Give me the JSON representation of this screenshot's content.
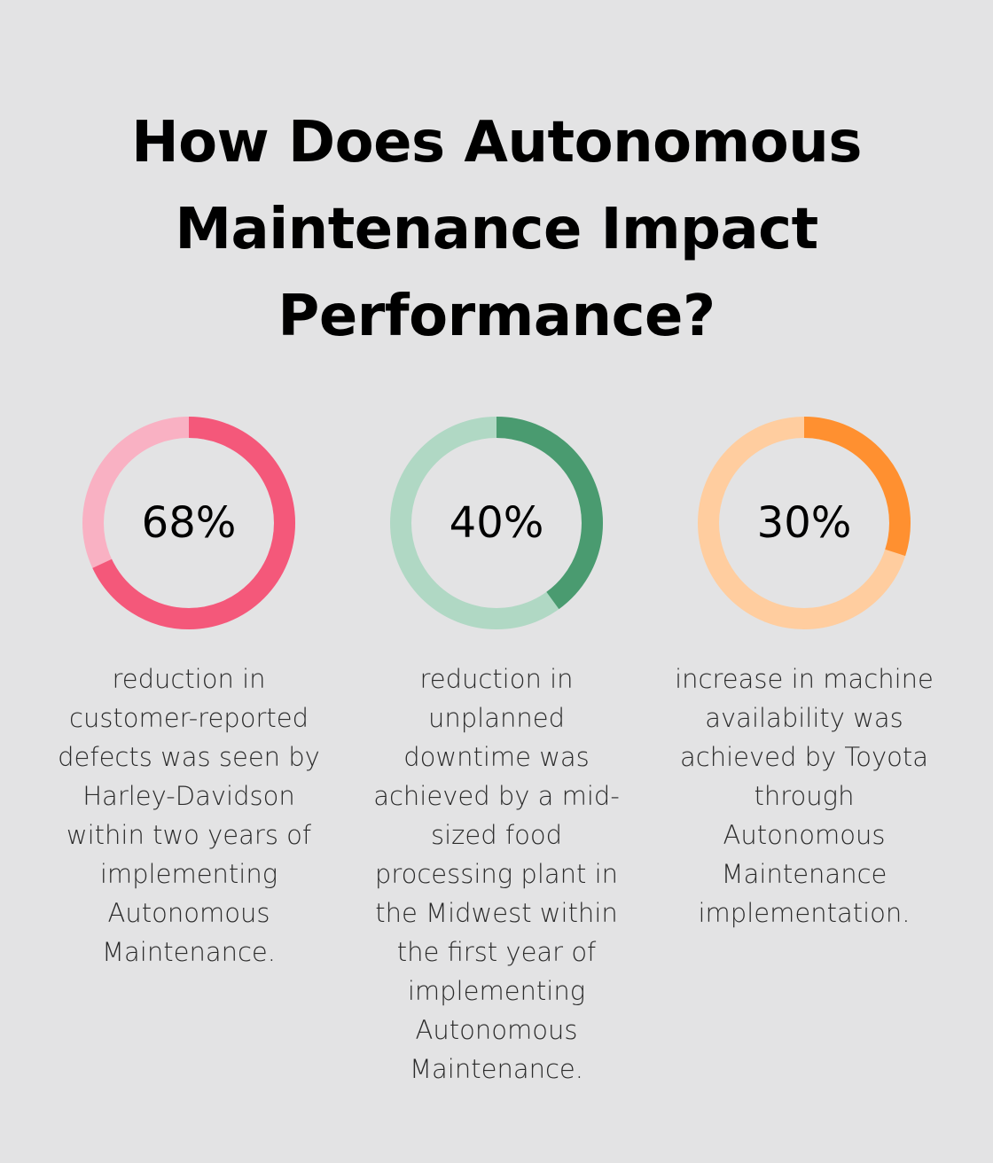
{
  "title": "How Does Autonomous Maintenance Impact Performance?",
  "chart_data": [
    {
      "type": "pie",
      "style": "donut",
      "value": 68,
      "label": "68%",
      "description": "reduction in customer-reported defects was seen by Harley-Davidson within two years of implementing Autonomous Maintenance.",
      "fill_color": "#f4587a",
      "track_color": "#f9b1c3"
    },
    {
      "type": "pie",
      "style": "donut",
      "value": 40,
      "label": "40%",
      "description": "reduction in unplanned downtime was achieved by a mid-sized food processing plant in the Midwest within the first year of implementing Autonomous Maintenance.",
      "fill_color": "#4a9b70",
      "track_color": "#b0d8c4"
    },
    {
      "type": "pie",
      "style": "donut",
      "value": 30,
      "label": "30%",
      "description": "increase in machine availability was achieved by Toyota through Autonomous Maintenance implementation.",
      "fill_color": "#ff9030",
      "track_color": "#ffcd9f"
    }
  ]
}
